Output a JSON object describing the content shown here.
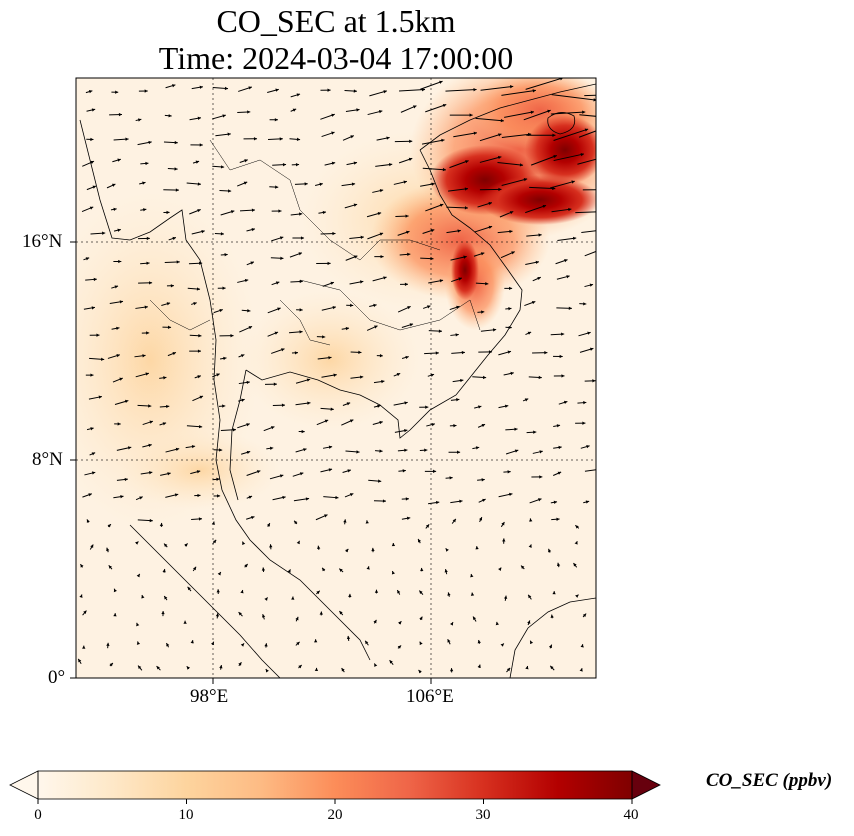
{
  "title": {
    "line1": "CO_SEC at 1.5km",
    "line2": "Time: 2024-03-04 17:00:00"
  },
  "axes": {
    "lon_ticks": [
      "98°E",
      "106°E"
    ],
    "lat_ticks": [
      "16°N",
      "8°N",
      "0°"
    ],
    "lon_range": [
      93,
      112
    ],
    "lat_range": [
      0,
      22
    ],
    "gridlines": "dotted"
  },
  "colorbar": {
    "label": "CO_SEC (ppbv)",
    "ticks": [
      "0",
      "10",
      "20",
      "30",
      "40"
    ],
    "range": [
      0,
      40
    ],
    "extend": "both",
    "colormap": "OrRd",
    "colors": [
      "#fff7ec",
      "#fee8c8",
      "#fdd49e",
      "#fdbb84",
      "#fc8d59",
      "#ef6548",
      "#d7301f",
      "#b30000",
      "#7f0000"
    ]
  },
  "chart_data": {
    "type": "heatmap",
    "variable": "CO_SEC",
    "units": "ppbv",
    "region": "Mainland Southeast Asia",
    "high_concentration_area": "northern Vietnam / Laos, around 16–21°N, 104–111°E",
    "peak_value_estimate": 38,
    "background_value_estimate": 3,
    "wind_vectors": "shown as black arrows; strongest westerly-to-easterly flow in the northeast corner"
  }
}
